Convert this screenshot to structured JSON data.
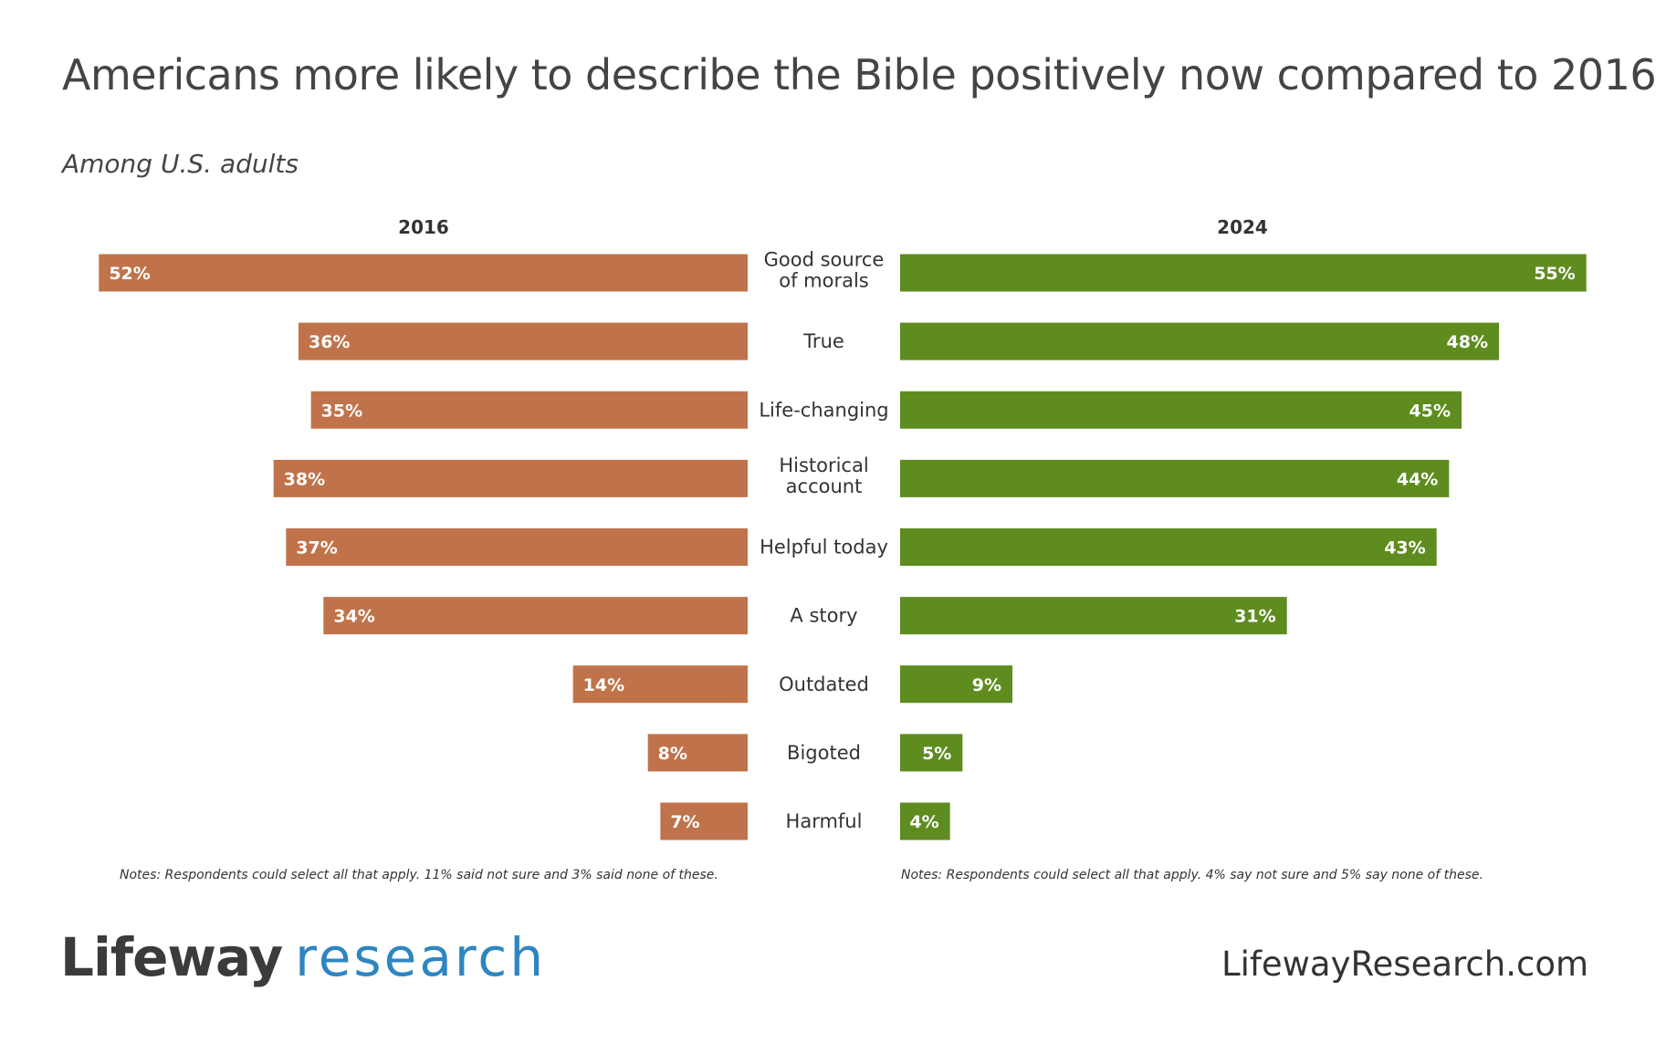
{
  "title": "Americans more likely to describe the Bible positively now compared to 2016",
  "subtitle": "Among U.S. adults",
  "colors": {
    "left_bar": "#c0734a",
    "right_bar": "#5e8c1f",
    "logo_accent": "#2e86c1",
    "text": "#444444"
  },
  "chart_data": {
    "type": "bar",
    "orientation": "horizontal-diverging",
    "categories": [
      [
        "Good source",
        "of morals"
      ],
      [
        "True"
      ],
      [
        "Life-changing"
      ],
      [
        "Historical",
        "account"
      ],
      [
        "Helpful today"
      ],
      [
        "A story"
      ],
      [
        "Outdated"
      ],
      [
        "Bigoted"
      ],
      [
        "Harmful"
      ]
    ],
    "series": [
      {
        "name": "2016",
        "values": [
          52,
          36,
          35,
          38,
          37,
          34,
          14,
          8,
          7
        ],
        "labels": [
          "52%",
          "36%",
          "35%",
          "38%",
          "37%",
          "34%",
          "14%",
          "8%",
          "7%"
        ]
      },
      {
        "name": "2024",
        "values": [
          55,
          48,
          45,
          44,
          43,
          31,
          9,
          5,
          4
        ],
        "labels": [
          "55%",
          "48%",
          "45%",
          "44%",
          "43%",
          "31%",
          "9%",
          "5%",
          "4%"
        ]
      }
    ],
    "xlim": [
      0,
      55
    ],
    "unit": "%",
    "grid": false
  },
  "notes": {
    "left": "Notes: Respondents could select all that apply. 11% said not sure and 3% said none of these.",
    "right": "Notes: Respondents could select all that apply. 4% say not sure and 5% say none of these."
  },
  "footer": {
    "logo_word": "Lifeway",
    "logo_accent": "research",
    "website": "LifewayResearch.com"
  }
}
